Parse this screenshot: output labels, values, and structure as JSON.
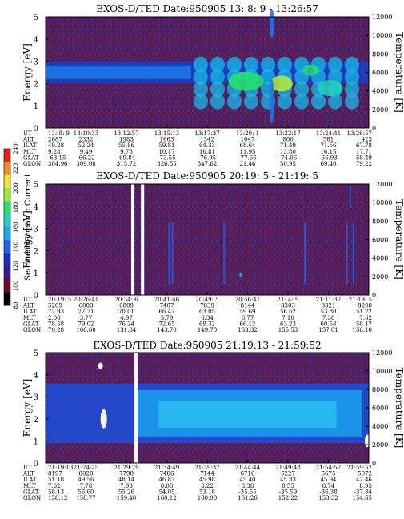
{
  "chart_data": [
    {
      "type": "heatmap",
      "title": "EXOS-D/TED",
      "date": "Date:950905",
      "time_range": "13: 8: 9 - 13:26:57",
      "ylabel": "Energy [eV]",
      "ylabel_right": "Temperature [K]",
      "ylim": [
        0,
        5
      ],
      "y_ticks": [
        "0",
        "1",
        "2",
        "3",
        "4",
        "5"
      ],
      "y2lim": [
        0,
        12000
      ],
      "y2_ticks": [
        "0",
        "2000",
        "4000",
        "6000",
        "8000",
        "10000",
        "12000"
      ],
      "row_labels": [
        "UT",
        "ALT",
        "ILAT",
        "MLT",
        "GLAT",
        "GLON"
      ],
      "columns": [
        [
          "13: 8: 9",
          "2687",
          "49.28",
          "9.28",
          "-63.15",
          "304.96"
        ],
        [
          "13:10:33",
          "2332",
          "52.24",
          "9.49",
          "-66.22",
          "309.08"
        ],
        [
          "13:12:57",
          "1983",
          "55.86",
          "9.78",
          "-69.84",
          "315.72"
        ],
        [
          "13:15:13",
          "1663",
          "59.81",
          "10.17",
          "-73.55",
          "326.55"
        ],
        [
          "13:17:37",
          "1342",
          "64.33",
          "10.81",
          "-76.95",
          "347.62"
        ],
        [
          "13:20: 1",
          "1047",
          "68.64",
          "11.95",
          "-77.66",
          "21.46"
        ],
        [
          "13:22:17",
          "800",
          "71.49",
          "13.80",
          "-74.06",
          "50.95"
        ],
        [
          "13:24:41",
          "581",
          "71.56",
          "16.15",
          "-66.93",
          "69.40"
        ],
        [
          "13:26:57",
          "423",
          "67.78",
          "17.71",
          "-58.49",
          "79.22"
        ]
      ]
    },
    {
      "type": "heatmap",
      "title": "EXOS-D/TED",
      "date": "Date:950905",
      "time_range": "20:19: 5 - 21:19: 5",
      "ylabel": "Energy [eV]",
      "ylabel_right": "Temperature [K]",
      "ylim": [
        0,
        5
      ],
      "y_ticks": [
        "0",
        "1",
        "2",
        "3",
        "4",
        "5"
      ],
      "y2lim": [
        0,
        12000
      ],
      "y2_ticks": [
        "0",
        "2000",
        "4000",
        "6000",
        "8000",
        "10000",
        "12000"
      ],
      "row_labels": [
        "UT",
        "ALT",
        "ILAT",
        "MLT",
        "GLAT",
        "GLON"
      ],
      "columns": [
        [
          "20:19: 5",
          "5209",
          "72.93",
          "2.06",
          "78.58",
          "70.28"
        ],
        [
          "20:26:41",
          "6088",
          "72.71",
          "3.77",
          "79.02",
          "108.60"
        ],
        [
          "20:34: 6",
          "6809",
          "70.01",
          "4.97",
          "76.24",
          "131.84"
        ],
        [
          "20:41:46",
          "7407",
          "66.47",
          "5.79",
          "72.65",
          "143.70"
        ],
        [
          "20:49: 5",
          "7839",
          "63.05",
          "6.34",
          "69.32",
          "149.70"
        ],
        [
          "20:56:41",
          "8144",
          "59.69",
          "6.77",
          "66.12",
          "153.32"
        ],
        [
          "21: 4: 9",
          "8303",
          "56.62",
          "7.10",
          "63.23",
          "155.53"
        ],
        [
          "21:11:37",
          "8321",
          "53.80",
          "7.38",
          "60.58",
          "157.01"
        ],
        [
          "21:19: 5",
          "8200",
          "51.22",
          "7.62",
          "58.17",
          "158.10"
        ]
      ]
    },
    {
      "type": "heatmap",
      "title": "EXOS-D/TED",
      "date": "Date:950905",
      "time_range": "21:19:13 - 21:59:52",
      "ylabel": "Energy [eV]",
      "ylabel_right": "Temperature [K]",
      "ylim": [
        0,
        5
      ],
      "y_ticks": [
        "0",
        "1",
        "2",
        "3",
        "4",
        "5"
      ],
      "y2lim": [
        0,
        12000
      ],
      "y2_ticks": [
        "0",
        "2000",
        "4000",
        "6000",
        "8000",
        "10000",
        "12000"
      ],
      "row_labels": [
        "UT",
        "ALT",
        "ILAT",
        "MLT",
        "GLAT",
        "GLON"
      ],
      "columns": [
        [
          "21:19:13",
          "8197",
          "51.18",
          "7.62",
          "58.13",
          "158.12"
        ],
        [
          "21:24:25",
          "8028",
          "49.56",
          "7.78",
          "56.60",
          "158.77"
        ],
        [
          "21:29:29",
          "7798",
          "48.14",
          "7.93",
          "55.26",
          "159.40"
        ],
        [
          "21:34:49",
          "7486",
          "46.87",
          "8.08",
          "54.05",
          "160.12"
        ],
        [
          "21:39:37",
          "7144",
          "45.98",
          "8.22",
          "53.18",
          "160.90"
        ],
        [
          "21:44:44",
          "6716",
          "45.40",
          "8.38",
          "-35.55",
          "151.26"
        ],
        [
          "21:49:48",
          "6227",
          "45.33",
          "8.55",
          "-35.59",
          "152.22"
        ],
        [
          "21:54:52",
          "5675",
          "45.94",
          "8.74",
          "-36.38",
          "153.32"
        ],
        [
          "21:59:52",
          "5072",
          "47.46",
          "8.95",
          "-37.84",
          "154.65"
        ]
      ]
    }
  ],
  "colorbar": {
    "label": "Second Harmonic Current",
    "ticks": [
      "80",
      "100",
      "120",
      "140",
      "160",
      "180",
      "200",
      "220",
      "240"
    ],
    "colors": [
      "#000000",
      "#6e0a2a",
      "#3a1a8c",
      "#1e2ccc",
      "#1c64f0",
      "#17a8f0",
      "#20d4c0",
      "#26e070",
      "#9ee83a",
      "#f0e830",
      "#f09020",
      "#e82018"
    ]
  }
}
